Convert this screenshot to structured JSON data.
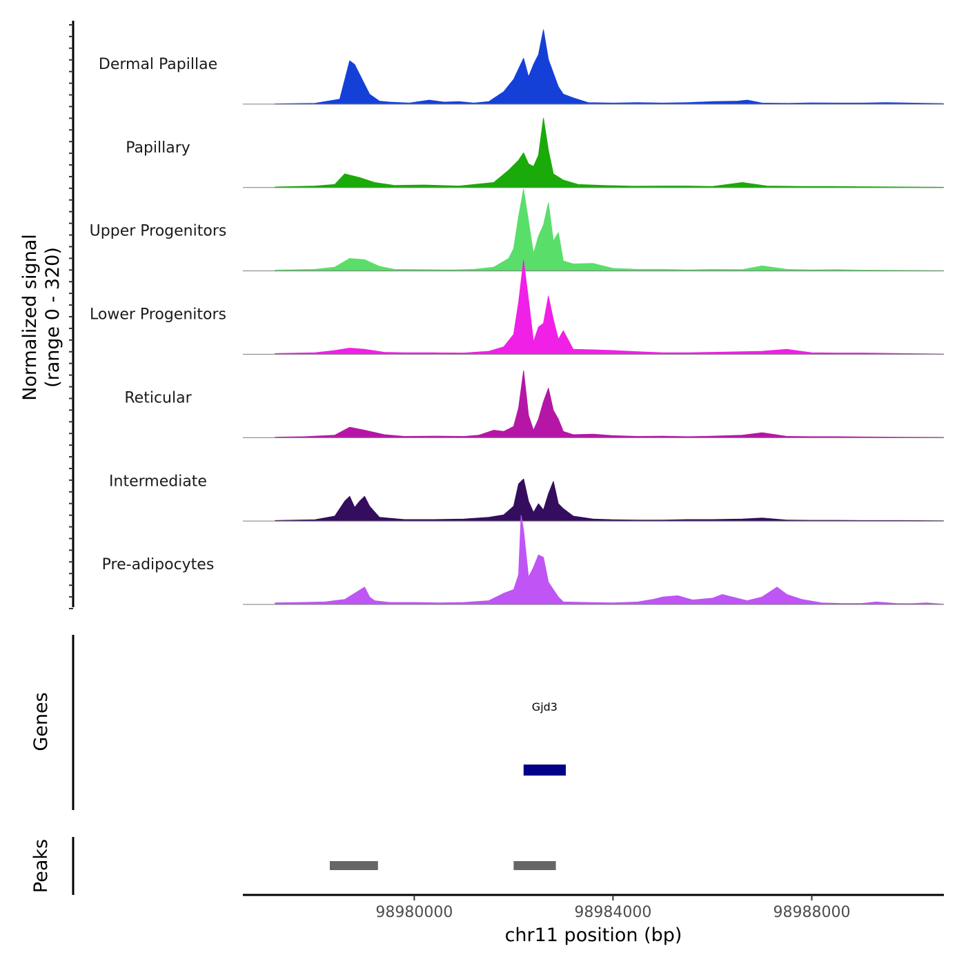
{
  "chart_data": {
    "type": "area",
    "title": "",
    "chromosome": "chr11",
    "xlabel": "chr11 position (bp)",
    "ylabel": "Normalized signal",
    "ylabel_range": "(range 0 - 320)",
    "ylim": [
      0,
      320
    ],
    "xlim": [
      98976550,
      98990660
    ],
    "x_ticks": [
      98980000,
      98984000,
      98988000
    ],
    "x_tick_labels": [
      "98980000",
      "98984000",
      "98988000"
    ],
    "series": [
      {
        "name": "Dermal Papillae",
        "color": "#1540D8",
        "x": [
          98977200,
          98978000,
          98978500,
          98978700,
          98978800,
          98978900,
          98979100,
          98979300,
          98979500,
          98979900,
          98980300,
          98980600,
          98980900,
          98981200,
          98981500,
          98981800,
          98982000,
          98982200,
          98982300,
          98982400,
          98982500,
          98982600,
          98982700,
          98982900,
          98983000,
          98983200,
          98983500,
          98984000,
          98984500,
          98985000,
          98985500,
          98986000,
          98986500,
          98986700,
          98987000,
          98987500,
          98988000,
          98988500,
          98989000,
          98989500,
          98990000,
          98990650
        ],
        "values": [
          1,
          3,
          20,
          175,
          160,
          120,
          40,
          12,
          8,
          4,
          16,
          8,
          10,
          4,
          10,
          50,
          100,
          185,
          110,
          160,
          200,
          300,
          180,
          70,
          40,
          25,
          6,
          4,
          6,
          4,
          6,
          10,
          12,
          16,
          4,
          3,
          5,
          4,
          4,
          6,
          4,
          2
        ]
      },
      {
        "name": "Papillary",
        "color": "#1AAA0A",
        "x": [
          98977200,
          98978000,
          98978400,
          98978600,
          98978900,
          98979200,
          98979600,
          98980200,
          98980900,
          98981600,
          98981900,
          98982100,
          98982200,
          98982300,
          98982400,
          98982500,
          98982600,
          98982700,
          98982800,
          98983000,
          98983300,
          98983800,
          98984400,
          98985000,
          98985500,
          98986000,
          98986600,
          98987100,
          98987800,
          98988400,
          98989000,
          98989800,
          98990650
        ],
        "values": [
          2,
          6,
          12,
          55,
          40,
          20,
          8,
          10,
          6,
          20,
          70,
          110,
          140,
          95,
          85,
          130,
          280,
          150,
          55,
          30,
          12,
          8,
          5,
          6,
          6,
          4,
          20,
          6,
          4,
          4,
          3,
          2,
          1
        ]
      },
      {
        "name": "Upper Progenitors",
        "color": "#5ADE6A",
        "x": [
          98977200,
          98978000,
          98978400,
          98978700,
          98979000,
          98979300,
          98979600,
          98980200,
          98980800,
          98981200,
          98981600,
          98981900,
          98982000,
          98982100,
          98982200,
          98982300,
          98982400,
          98982500,
          98982600,
          98982700,
          98982800,
          98982900,
          98983000,
          98983200,
          98983600,
          98984000,
          98984500,
          98985000,
          98985500,
          98986000,
          98986600,
          98987000,
          98987500,
          98988000,
          98988500,
          98989000,
          98989800,
          98990650
        ],
        "values": [
          3,
          6,
          15,
          50,
          45,
          18,
          6,
          5,
          4,
          6,
          15,
          50,
          90,
          220,
          330,
          200,
          70,
          140,
          185,
          275,
          120,
          155,
          40,
          28,
          30,
          10,
          6,
          6,
          4,
          6,
          5,
          20,
          6,
          4,
          5,
          3,
          2,
          1
        ]
      },
      {
        "name": "Lower Progenitors",
        "color": "#F020E6",
        "x": [
          98977200,
          98978000,
          98978400,
          98978700,
          98979000,
          98979400,
          98979800,
          98980400,
          98981000,
          98981500,
          98981800,
          98982000,
          98982100,
          98982200,
          98982300,
          98982400,
          98982500,
          98982600,
          98982700,
          98982800,
          98982900,
          98983000,
          98983200,
          98983600,
          98984000,
          98984500,
          98985000,
          98985500,
          98986000,
          98986600,
          98987000,
          98987500,
          98988000,
          98988500,
          98989000,
          98989800,
          98990650
        ],
        "values": [
          3,
          6,
          15,
          25,
          20,
          8,
          6,
          6,
          5,
          12,
          30,
          80,
          210,
          380,
          220,
          50,
          110,
          125,
          235,
          140,
          60,
          95,
          20,
          18,
          15,
          10,
          6,
          6,
          8,
          10,
          12,
          20,
          6,
          5,
          5,
          3,
          1
        ]
      },
      {
        "name": "Reticular",
        "color": "#B516A6",
        "x": [
          98977200,
          98977800,
          98978400,
          98978700,
          98979000,
          98979400,
          98979800,
          98980400,
          98981000,
          98981300,
          98981600,
          98981800,
          98982000,
          98982100,
          98982200,
          98982300,
          98982400,
          98982500,
          98982600,
          98982700,
          98982800,
          98982900,
          98983000,
          98983200,
          98983600,
          98984000,
          98984500,
          98985000,
          98985500,
          98986000,
          98986600,
          98987000,
          98987500,
          98988000,
          98988500,
          98989000,
          98989800,
          98990650
        ],
        "values": [
          2,
          4,
          10,
          42,
          30,
          12,
          5,
          6,
          5,
          10,
          30,
          25,
          45,
          120,
          270,
          90,
          30,
          75,
          145,
          200,
          110,
          75,
          25,
          12,
          14,
          8,
          5,
          6,
          4,
          6,
          10,
          20,
          5,
          4,
          4,
          3,
          2,
          1
        ]
      },
      {
        "name": "Intermediate",
        "color": "#350D5E",
        "x": [
          98977200,
          98978000,
          98978400,
          98978600,
          98978700,
          98978800,
          98978900,
          98979000,
          98979100,
          98979300,
          98979800,
          98980400,
          98981000,
          98981500,
          98981800,
          98982000,
          98982100,
          98982200,
          98982300,
          98982400,
          98982500,
          98982600,
          98982700,
          98982800,
          98982900,
          98983000,
          98983200,
          98983600,
          98984000,
          98984500,
          98985000,
          98985500,
          98986000,
          98986600,
          98987000,
          98987500,
          98988000,
          98988500,
          98989000,
          98989800,
          98990650
        ],
        "values": [
          2,
          5,
          20,
          80,
          100,
          55,
          80,
          100,
          60,
          15,
          6,
          6,
          8,
          15,
          25,
          60,
          150,
          170,
          80,
          35,
          70,
          45,
          110,
          160,
          70,
          50,
          20,
          8,
          5,
          4,
          4,
          6,
          6,
          8,
          12,
          4,
          3,
          3,
          2,
          2,
          1
        ]
      },
      {
        "name": "Pre-adipocytes",
        "color": "#BF55F5",
        "x": [
          98977200,
          98977700,
          98978200,
          98978600,
          98979000,
          98979100,
          98979200,
          98979500,
          98980000,
          98980500,
          98981000,
          98981500,
          98981800,
          98982000,
          98982100,
          98982150,
          98982200,
          98982300,
          98982400,
          98982500,
          98982600,
          98982700,
          98982800,
          98982900,
          98983000,
          98983500,
          98984000,
          98984500,
          98984800,
          98985000,
          98985300,
          98985600,
          98986000,
          98986200,
          98986400,
          98986700,
          98987000,
          98987300,
          98987500,
          98987800,
          98988200,
          98988600,
          98989000,
          98989300,
          98989700,
          98990000,
          98990300,
          98990650
        ],
        "values": [
          6,
          8,
          10,
          20,
          70,
          30,
          15,
          8,
          8,
          6,
          8,
          15,
          45,
          60,
          120,
          360,
          300,
          110,
          150,
          200,
          190,
          90,
          60,
          30,
          10,
          8,
          6,
          10,
          20,
          30,
          35,
          18,
          25,
          40,
          30,
          15,
          30,
          70,
          40,
          20,
          6,
          4,
          4,
          10,
          4,
          3,
          6,
          1
        ]
      }
    ],
    "genes": [
      {
        "name": "Gjd3",
        "start": 98982200,
        "end": 98983050,
        "color": "#00008B"
      }
    ],
    "peaks_track": {
      "label": "Peaks",
      "color": "#666666",
      "ranges": [
        [
          98978300,
          98979270
        ],
        [
          98982000,
          98982850
        ]
      ]
    },
    "genes_track_label": "Genes"
  }
}
